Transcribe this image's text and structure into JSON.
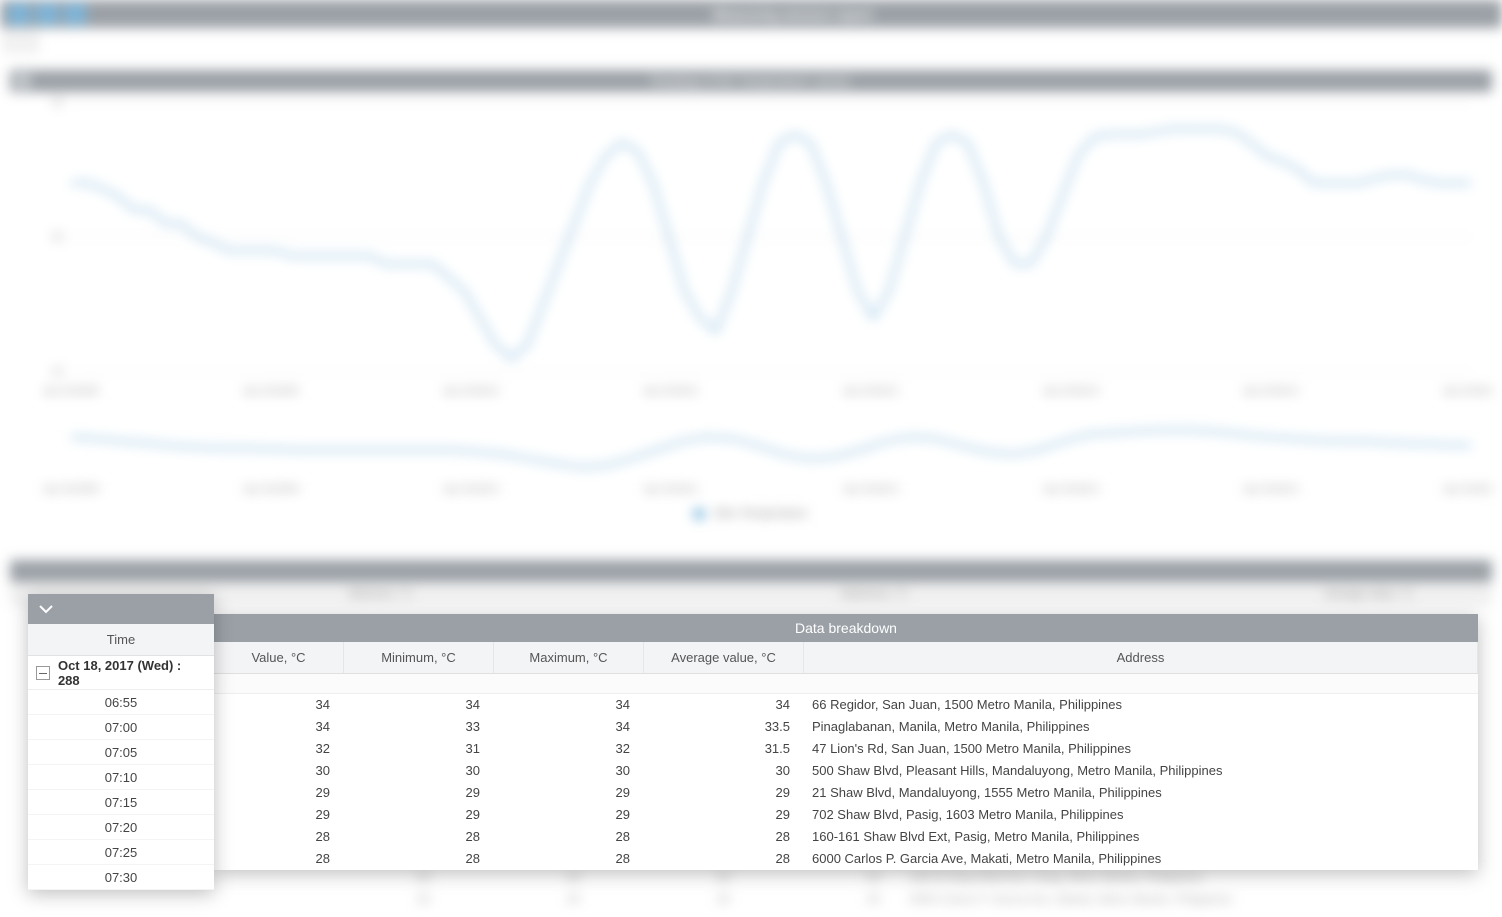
{
  "app": {
    "title": "Measuring sensors report",
    "toolbar_icons": [
      "download-icon",
      "save-icon",
      "settings-icon"
    ]
  },
  "chart": {
    "title": "Readings of the \"temperature\" sensor",
    "type": "line",
    "line_color": "#6fb0d9",
    "grid_color": "#e8e8e8",
    "background_color": "#ffffff",
    "yaxis_label_color": "#999999",
    "ylim": [
      25,
      35
    ],
    "ytick_step": 5,
    "x_labels": [
      "Apr-2018/08",
      "Apr-2018/09",
      "Apr-2018/10",
      "Apr-2018/11",
      "Apr-2018/12",
      "Apr-2018/13",
      "Apr-2018/14",
      "Apr-2018/15"
    ],
    "series_name": "Skin Temperature",
    "values": [
      32,
      32,
      31.8,
      31.5,
      31,
      31,
      30.5,
      30.5,
      30,
      29.8,
      29.5,
      29.5,
      29.5,
      29.5,
      29.3,
      29.3,
      29.3,
      29.3,
      29.3,
      29.3,
      29,
      29,
      29,
      29,
      28.5,
      28,
      27,
      26,
      25.5,
      26,
      27.5,
      29,
      30.5,
      32,
      33,
      33.5,
      33.2,
      32,
      30,
      28,
      27,
      26.5,
      28,
      30,
      32,
      33.5,
      33.8,
      33.5,
      32,
      30,
      28,
      27,
      28,
      30,
      32,
      33.5,
      33.8,
      33.5,
      32,
      30,
      29,
      29,
      30,
      31.5,
      33,
      33.7,
      33.8,
      33.8,
      33.8,
      33.9,
      34,
      34,
      34,
      34,
      33.9,
      33.5,
      33,
      32.8,
      32.5,
      32,
      32,
      32,
      32,
      32.2,
      32.3,
      32.3,
      32.1,
      32,
      32,
      32
    ],
    "nav_values": [
      31.5,
      31.3,
      31,
      30.8,
      30.5,
      30.3,
      30.2,
      30.2,
      30.1,
      30,
      30,
      30,
      30,
      30,
      30,
      30,
      29.8,
      29.5,
      29,
      28.5,
      28,
      28.2,
      29,
      30,
      31,
      31.5,
      31.3,
      30.5,
      29.5,
      29,
      29.2,
      30,
      31,
      31.5,
      31.3,
      30.5,
      29.8,
      29.5,
      30,
      31,
      31.8,
      32,
      32.2,
      32.3,
      32.3,
      32.1,
      31.8,
      31.5,
      31.3,
      31.1,
      31,
      31,
      30.8,
      30.7,
      30.6,
      30.5
    ],
    "nav_ylim": [
      27,
      33
    ]
  },
  "summary": {
    "header": "Summary table",
    "cells": [
      "",
      "Minimum, °C",
      "",
      "Maximum, °C",
      "",
      "Average value, °C"
    ]
  },
  "timePopup": {
    "columnHeader": "Time",
    "groupLabel": "Oct 18, 2017 (Wed) : 288",
    "rows": [
      "06:55",
      "07:00",
      "07:05",
      "07:10",
      "07:15",
      "07:20",
      "07:25",
      "07:30"
    ]
  },
  "breakdown": {
    "title": "Data breakdown",
    "columns": [
      "Value, °C",
      "Minimum, °C",
      "Maximum, °C",
      "Average value, °C",
      "Address"
    ],
    "rows": [
      {
        "value": 34,
        "min": 34,
        "max": 34,
        "avg": 34,
        "address": "66 Regidor, San Juan, 1500 Metro Manila, Philippines"
      },
      {
        "value": 34,
        "min": 33,
        "max": 34,
        "avg": 33.5,
        "address": "Pinaglabanan, Manila, Metro Manila, Philippines"
      },
      {
        "value": 32,
        "min": 31,
        "max": 32,
        "avg": 31.5,
        "address": "47 Lion's Rd, San Juan, 1500 Metro Manila, Philippines"
      },
      {
        "value": 30,
        "min": 30,
        "max": 30,
        "avg": 30,
        "address": "500 Shaw Blvd, Pleasant Hills, Mandaluyong, Metro Manila, Philippines"
      },
      {
        "value": 29,
        "min": 29,
        "max": 29,
        "avg": 29,
        "address": "21 Shaw Blvd, Mandaluyong, 1555 Metro Manila, Philippines"
      },
      {
        "value": 29,
        "min": 29,
        "max": 29,
        "avg": 29,
        "address": "702 Shaw Blvd, Pasig, 1603 Metro Manila, Philippines"
      },
      {
        "value": 28,
        "min": 28,
        "max": 28,
        "avg": 28,
        "address": "160-161 Shaw Blvd Ext, Pasig, Metro Manila, Philippines"
      },
      {
        "value": 28,
        "min": 28,
        "max": 28,
        "avg": 28,
        "address": "6000 Carlos P. Garcia Ave, Makati, Metro Manila, Philippines"
      }
    ]
  },
  "blurredExtraRows": [
    {
      "v": 30,
      "addr": "246 St Shaw Blvd Ext, Pasig, Metro Manila, Philippines"
    },
    {
      "v": 30,
      "addr": "6000 Carlos P. Garcia Ave, Makati, Metro Manila, Philippines"
    }
  ],
  "style": {
    "panel_header_bg": "#9aa0a6",
    "panel_header_fg": "#ffffff",
    "column_header_bg": "#f3f4f6",
    "text_color": "#444444",
    "popup_shadow": "0 4px 18px rgba(0,0,0,0.25)"
  }
}
